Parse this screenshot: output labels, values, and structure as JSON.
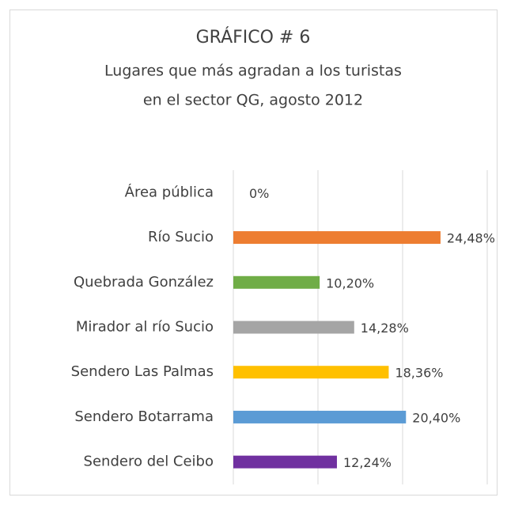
{
  "chart_data": {
    "type": "bar",
    "orientation": "horizontal",
    "title": "GRÁFICO # 6",
    "subtitle": [
      "Lugares que más agradan a los turistas",
      "en el sector QG, agosto 2012"
    ],
    "categories": [
      "Área pública",
      "Río Sucio",
      "Quebrada González",
      "Mirador al río Sucio",
      "Sendero Las Palmas",
      "Sendero Botarrama",
      "Sendero del Ceibo"
    ],
    "values": [
      0,
      24.48,
      10.2,
      14.28,
      18.36,
      20.4,
      12.24
    ],
    "value_labels": [
      "0%",
      "24,48%",
      "10,20%",
      "14,28%",
      "18,36%",
      "20,40%",
      "12,24%"
    ],
    "colors": [
      "#7f7f7f",
      "#ed7d31",
      "#70ad47",
      "#a5a5a5",
      "#ffc000",
      "#5b9bd5",
      "#7030a0"
    ],
    "xlim": [
      0,
      30
    ],
    "xticks": [
      0,
      10,
      20,
      30
    ],
    "grid": true
  }
}
